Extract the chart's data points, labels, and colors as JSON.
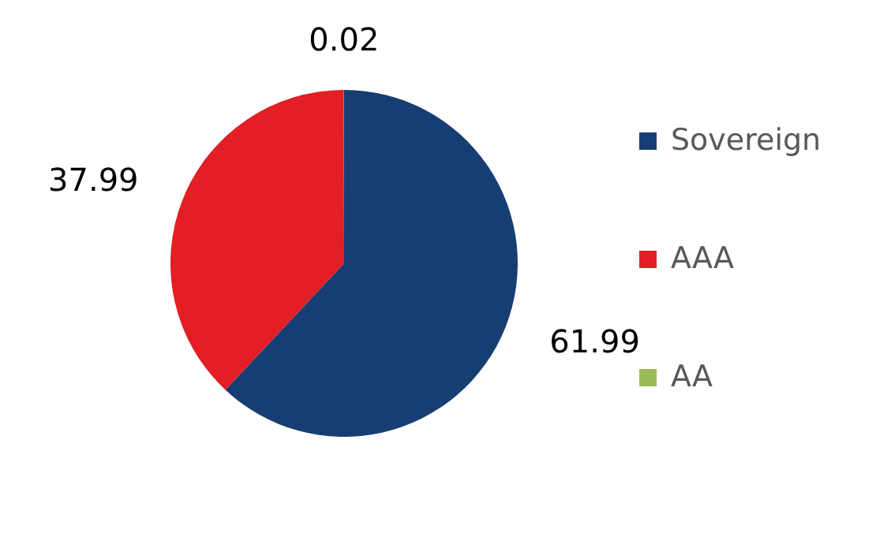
{
  "chart_data": {
    "type": "pie",
    "categories": [
      "Sovereign",
      "AAA",
      "AA"
    ],
    "values": [
      61.99,
      37.99,
      0.02
    ],
    "colors": [
      "#173e72",
      "#e31e24",
      "#9bbb59"
    ],
    "data_labels": true,
    "legend": "right"
  }
}
